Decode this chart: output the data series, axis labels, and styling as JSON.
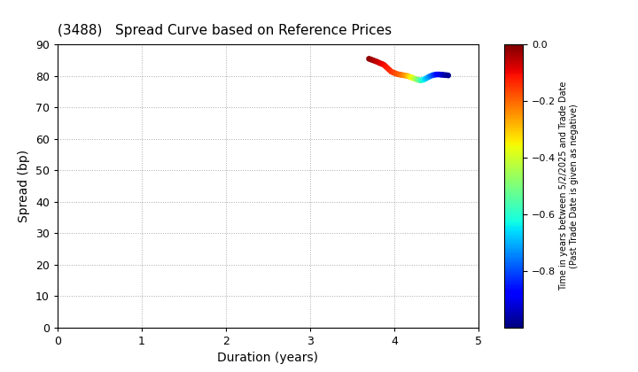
{
  "title": "(3488)   Spread Curve based on Reference Prices",
  "xlabel": "Duration (years)",
  "ylabel": "Spread (bp)",
  "xlim": [
    0,
    5
  ],
  "ylim": [
    0,
    90
  ],
  "xticks": [
    0,
    1,
    2,
    3,
    4,
    5
  ],
  "yticks": [
    0,
    10,
    20,
    30,
    40,
    50,
    60,
    70,
    80,
    90
  ],
  "colorbar_label_line1": "Time in years between 5/2/2025 and Trade Date",
  "colorbar_label_line2": "(Past Trade Date is given as negative)",
  "cmap": "jet",
  "color_vmin": -1.0,
  "color_vmax": 0.0,
  "colorbar_ticks": [
    0.0,
    -0.2,
    -0.4,
    -0.6,
    -0.8
  ],
  "scatter_data": [
    {
      "duration": 3.7,
      "spread": 85.5,
      "time": -0.01
    },
    {
      "duration": 3.72,
      "spread": 85.3,
      "time": -0.02
    },
    {
      "duration": 3.74,
      "spread": 85.1,
      "time": -0.03
    },
    {
      "duration": 3.76,
      "spread": 84.9,
      "time": -0.04
    },
    {
      "duration": 3.78,
      "spread": 84.7,
      "time": -0.05
    },
    {
      "duration": 3.8,
      "spread": 84.5,
      "time": -0.06
    },
    {
      "duration": 3.82,
      "spread": 84.2,
      "time": -0.07
    },
    {
      "duration": 3.84,
      "spread": 84.0,
      "time": -0.08
    },
    {
      "duration": 3.86,
      "spread": 83.8,
      "time": -0.09
    },
    {
      "duration": 3.88,
      "spread": 83.5,
      "time": -0.1
    },
    {
      "duration": 3.9,
      "spread": 83.0,
      "time": -0.11
    },
    {
      "duration": 3.92,
      "spread": 82.5,
      "time": -0.12
    },
    {
      "duration": 3.94,
      "spread": 82.0,
      "time": -0.13
    },
    {
      "duration": 3.96,
      "spread": 81.5,
      "time": -0.14
    },
    {
      "duration": 3.98,
      "spread": 81.2,
      "time": -0.15
    },
    {
      "duration": 4.0,
      "spread": 81.0,
      "time": -0.16
    },
    {
      "duration": 4.02,
      "spread": 80.8,
      "time": -0.17
    },
    {
      "duration": 4.04,
      "spread": 80.6,
      "time": -0.18
    },
    {
      "duration": 4.06,
      "spread": 80.5,
      "time": -0.19
    },
    {
      "duration": 4.08,
      "spread": 80.4,
      "time": -0.2
    },
    {
      "duration": 4.1,
      "spread": 80.3,
      "time": -0.22
    },
    {
      "duration": 4.12,
      "spread": 80.2,
      "time": -0.24
    },
    {
      "duration": 4.14,
      "spread": 80.1,
      "time": -0.26
    },
    {
      "duration": 4.16,
      "spread": 80.0,
      "time": -0.29
    },
    {
      "duration": 4.18,
      "spread": 79.8,
      "time": -0.32
    },
    {
      "duration": 4.2,
      "spread": 79.6,
      "time": -0.35
    },
    {
      "duration": 4.22,
      "spread": 79.4,
      "time": -0.38
    },
    {
      "duration": 4.24,
      "spread": 79.2,
      "time": -0.42
    },
    {
      "duration": 4.26,
      "spread": 79.0,
      "time": -0.46
    },
    {
      "duration": 4.28,
      "spread": 78.8,
      "time": -0.5
    },
    {
      "duration": 4.3,
      "spread": 78.7,
      "time": -0.54
    },
    {
      "duration": 4.32,
      "spread": 78.6,
      "time": -0.58
    },
    {
      "duration": 4.34,
      "spread": 78.8,
      "time": -0.62
    },
    {
      "duration": 4.36,
      "spread": 79.0,
      "time": -0.65
    },
    {
      "duration": 4.38,
      "spread": 79.3,
      "time": -0.68
    },
    {
      "duration": 4.4,
      "spread": 79.6,
      "time": -0.71
    },
    {
      "duration": 4.42,
      "spread": 79.9,
      "time": -0.74
    },
    {
      "duration": 4.44,
      "spread": 80.1,
      "time": -0.77
    },
    {
      "duration": 4.46,
      "spread": 80.3,
      "time": -0.8
    },
    {
      "duration": 4.48,
      "spread": 80.4,
      "time": -0.83
    },
    {
      "duration": 4.5,
      "spread": 80.5,
      "time": -0.86
    },
    {
      "duration": 4.52,
      "spread": 80.5,
      "time": -0.88
    },
    {
      "duration": 4.54,
      "spread": 80.5,
      "time": -0.9
    },
    {
      "duration": 4.56,
      "spread": 80.4,
      "time": -0.92
    },
    {
      "duration": 4.58,
      "spread": 80.4,
      "time": -0.94
    },
    {
      "duration": 4.6,
      "spread": 80.3,
      "time": -0.96
    },
    {
      "duration": 4.62,
      "spread": 80.3,
      "time": -0.97
    },
    {
      "duration": 4.64,
      "spread": 80.2,
      "time": -0.98
    }
  ],
  "marker_size": 22,
  "background_color": "#ffffff",
  "grid_color": "#aaaaaa",
  "title_fontsize": 11
}
